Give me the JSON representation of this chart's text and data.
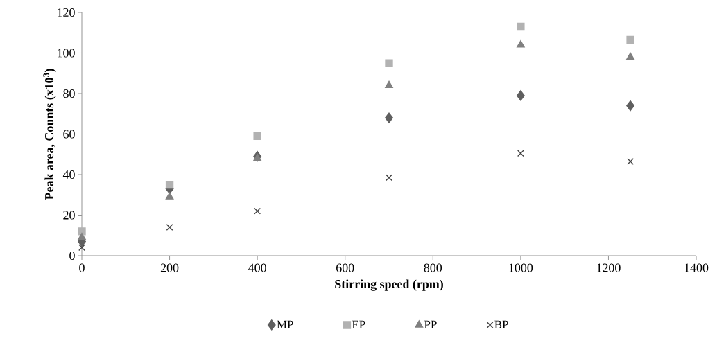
{
  "chart_data": {
    "type": "scatter",
    "xlabel": "Stirring speed (rpm)",
    "ylabel": "Peak area, Counts (x10$^{3}$)",
    "x": [
      0,
      200,
      400,
      700,
      1000,
      1250
    ],
    "series": [
      {
        "name": "MP",
        "color": "#5f5f5f",
        "marker": "diamond",
        "values": [
          7,
          33,
          49,
          68,
          79,
          74
        ]
      },
      {
        "name": "EP",
        "color": "#b2b2b2",
        "marker": "square",
        "values": [
          12,
          35,
          59,
          95,
          113,
          106.5
        ]
      },
      {
        "name": "PP",
        "color": "#808080",
        "marker": "triangle",
        "values": [
          9,
          29,
          48,
          84,
          104,
          98
        ]
      },
      {
        "name": "BP",
        "color": "#404040",
        "marker": "cross",
        "values": [
          4,
          14,
          22,
          38.5,
          50.5,
          46.5
        ]
      }
    ],
    "xlim": [
      0,
      1400
    ],
    "xticks": [
      0,
      200,
      400,
      600,
      800,
      1000,
      1200,
      1400
    ],
    "ylim": [
      0,
      120
    ],
    "yticks": [
      0,
      20,
      40,
      60,
      80,
      100,
      120
    ],
    "grid": false,
    "legend": "bottom"
  }
}
